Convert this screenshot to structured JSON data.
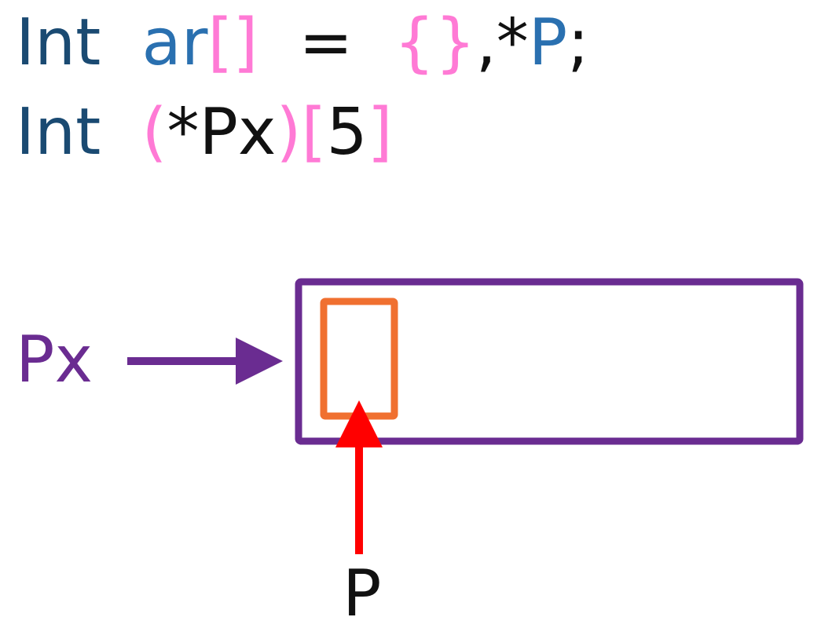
{
  "code": {
    "line1": [
      {
        "text": "Int",
        "role": "keyword"
      },
      {
        "text": "  ",
        "role": "plain"
      },
      {
        "text": "ar",
        "role": "ident"
      },
      {
        "text": "[]",
        "role": "bracket"
      },
      {
        "text": "  =  ",
        "role": "plain"
      },
      {
        "text": "{}",
        "role": "bracket"
      },
      {
        "text": ",*",
        "role": "plain"
      },
      {
        "text": "P",
        "role": "ident"
      },
      {
        "text": ";",
        "role": "plain"
      }
    ],
    "line2": [
      {
        "text": "Int",
        "role": "keyword"
      },
      {
        "text": "  ",
        "role": "plain"
      },
      {
        "text": "(",
        "role": "bracket"
      },
      {
        "text": "*Px",
        "role": "plain"
      },
      {
        "text": ")",
        "role": "bracket"
      },
      {
        "text": "[",
        "role": "bracket"
      },
      {
        "text": "5",
        "role": "plain"
      },
      {
        "text": "]",
        "role": "bracket"
      }
    ]
  },
  "labels": {
    "px": "Px",
    "p": "P"
  },
  "colors": {
    "keyword": "#1a4a72",
    "ident": "#2a70b0",
    "bracket": "#ff7ad5",
    "plain": "#111111",
    "array_box": "#6a2c91",
    "element_box": "#f07030",
    "px_arrow": "#6a2c91",
    "p_arrow": "#ff0000"
  }
}
